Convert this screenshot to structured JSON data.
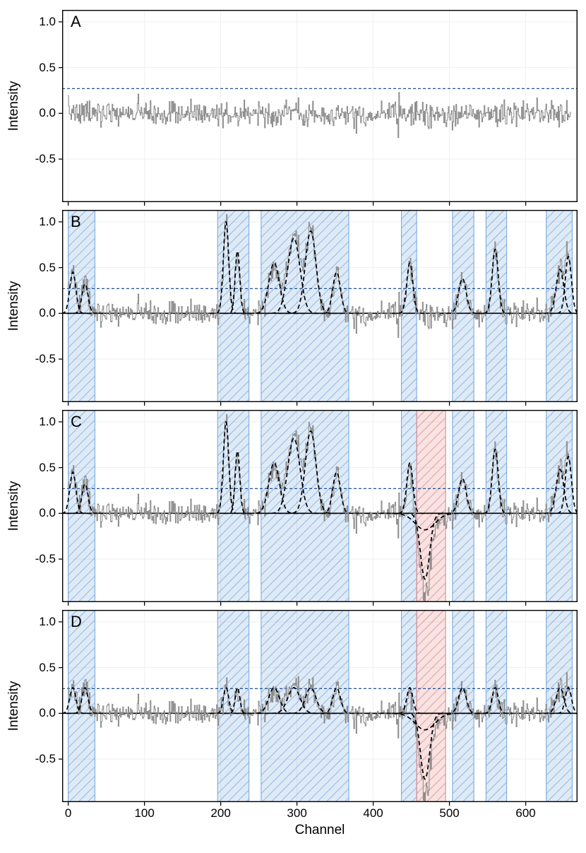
{
  "chart_data": {
    "type": "line",
    "title": "",
    "xlabel": "Channel",
    "ylabel": "Intensity",
    "xlim": [
      -8,
      668
    ],
    "ylim": [
      -0.97,
      1.13
    ],
    "xticks": [
      0,
      100,
      200,
      300,
      400,
      500,
      600
    ],
    "xtick_labels": [
      "0",
      "100",
      "200",
      "300",
      "400",
      "500",
      "600"
    ],
    "yticks": [
      -0.5,
      0.0,
      0.5,
      1.0
    ],
    "ytick_labels": [
      "-0.5",
      "0.0",
      "0.5",
      "1.0"
    ],
    "n_channels": 660,
    "noise_sigma": 0.07,
    "noise_seed": 7,
    "threshold": 0.27,
    "grid": true,
    "legend": false,
    "emission_components": [
      {
        "center": 6,
        "amplitude": 0.45,
        "sigma": 4
      },
      {
        "center": 22,
        "amplitude": 0.32,
        "sigma": 4
      },
      {
        "center": 207,
        "amplitude": 1.0,
        "sigma": 3.5
      },
      {
        "center": 222,
        "amplitude": 0.68,
        "sigma": 3
      },
      {
        "center": 270,
        "amplitude": 0.55,
        "sigma": 7
      },
      {
        "center": 296,
        "amplitude": 0.82,
        "sigma": 8
      },
      {
        "center": 318,
        "amplitude": 0.9,
        "sigma": 7
      },
      {
        "center": 352,
        "amplitude": 0.45,
        "sigma": 5
      },
      {
        "center": 448,
        "amplitude": 0.55,
        "sigma": 4
      },
      {
        "center": 517,
        "amplitude": 0.38,
        "sigma": 5
      },
      {
        "center": 560,
        "amplitude": 0.7,
        "sigma": 4
      },
      {
        "center": 645,
        "amplitude": 0.48,
        "sigma": 5
      },
      {
        "center": 656,
        "amplitude": 0.62,
        "sigma": 4
      }
    ],
    "absorption_components": [
      {
        "center": 468,
        "amplitude": -0.72,
        "sigma": 6
      },
      {
        "center": 468,
        "amplitude": -0.18,
        "sigma": 13
      }
    ],
    "blue_bands": [
      [
        0,
        35
      ],
      [
        196,
        237
      ],
      [
        253,
        368
      ],
      [
        437,
        457
      ],
      [
        504,
        532
      ],
      [
        548,
        575
      ],
      [
        627,
        661
      ]
    ],
    "red_band": [
      457,
      495
    ],
    "panels": [
      {
        "label": "A",
        "show_bands": false,
        "show_model": false,
        "show_absorption": false,
        "show_red_band": false,
        "show_zero_line": false,
        "emission_cap": null
      },
      {
        "label": "B",
        "show_bands": true,
        "show_model": true,
        "show_absorption": false,
        "show_red_band": false,
        "show_zero_line": true,
        "emission_cap": null
      },
      {
        "label": "C",
        "show_bands": true,
        "show_model": true,
        "show_absorption": true,
        "show_red_band": true,
        "show_zero_line": true,
        "emission_cap": null
      },
      {
        "label": "D",
        "show_bands": true,
        "show_model": true,
        "show_absorption": true,
        "show_red_band": true,
        "show_zero_line": true,
        "emission_cap": 0.28
      }
    ],
    "colors": {
      "noise": "#8a8a8a",
      "model": "#000000",
      "threshold": "#1f4e96",
      "zero_line": "#000000",
      "blue_band_fill": "rgba(140,180,225,0.28)",
      "blue_band_hatch": "rgba(90,150,210,0.55)",
      "blue_band_edge": "rgba(120,170,220,0.9)",
      "red_band_fill": "rgba(235,160,160,0.30)",
      "red_band_hatch": "rgba(210,110,110,0.55)",
      "red_band_edge": "rgba(220,140,140,0.9)",
      "grid": "#efefef",
      "axis": "#000000"
    }
  }
}
